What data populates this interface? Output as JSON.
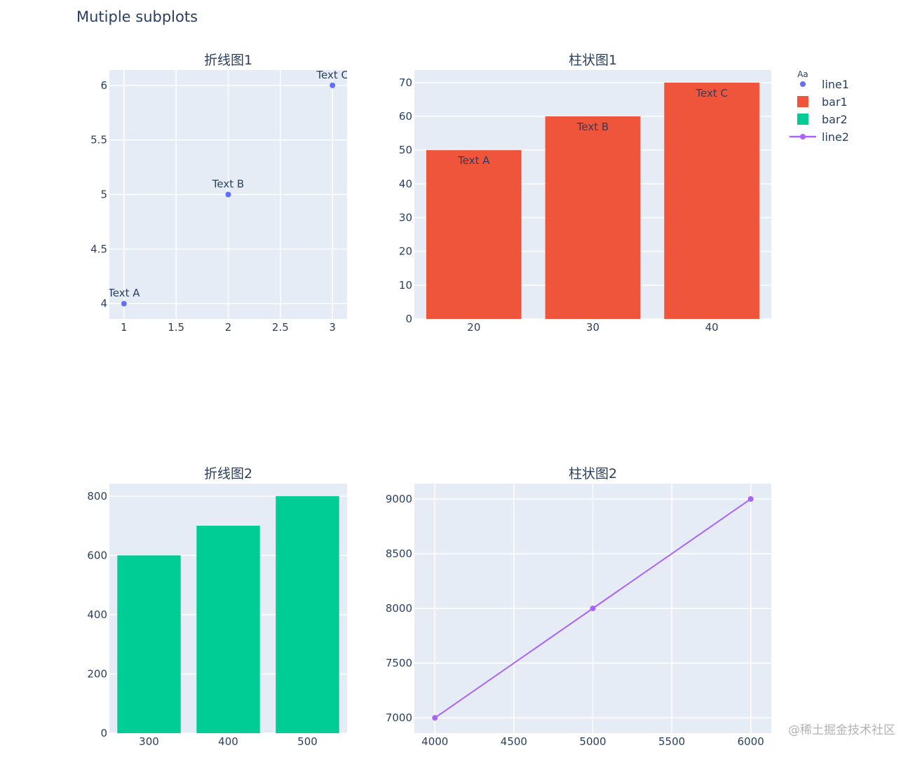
{
  "title": "Mutiple subplots",
  "watermark": "@稀土掘金技术社区",
  "legend": {
    "title": "Aa",
    "placement": "right",
    "items": [
      {
        "name": "line1",
        "symbol": "marker",
        "color": "#636efa"
      },
      {
        "name": "bar1",
        "symbol": "square",
        "color": "#ef553b"
      },
      {
        "name": "bar2",
        "symbol": "square",
        "color": "#00cc96"
      },
      {
        "name": "line2",
        "symbol": "line-marker",
        "color": "#ab63fa"
      }
    ]
  },
  "colors": {
    "plot_bg": "#e5ecf6",
    "grid": "#ffffff",
    "text": "#2a3f5f"
  },
  "chart_data": [
    {
      "type": "scatter",
      "title": "折线图1",
      "series": [
        {
          "name": "line1",
          "color": "#636efa",
          "mode": "markers+text",
          "x": [
            1,
            2,
            3
          ],
          "y": [
            4,
            5,
            6
          ],
          "text": [
            "Text A",
            "Text B",
            "Text C"
          ]
        }
      ],
      "xlim": [
        0.86,
        3.14
      ],
      "ylim": [
        3.86,
        6.14
      ],
      "xticks": [
        1,
        1.5,
        2,
        2.5,
        3
      ],
      "yticks": [
        4,
        4.5,
        5,
        5.5,
        6
      ],
      "grid": true
    },
    {
      "type": "bar",
      "title": "柱状图1",
      "series": [
        {
          "name": "bar1",
          "color": "#ef553b",
          "x": [
            20,
            30,
            40
          ],
          "values": [
            50,
            60,
            70
          ],
          "text": [
            "Text A",
            "Text B",
            "Text C"
          ]
        }
      ],
      "categories": [
        "20",
        "30",
        "40"
      ],
      "ylim": [
        0,
        73.7
      ],
      "yticks": [
        0,
        10,
        20,
        30,
        40,
        50,
        60,
        70
      ],
      "grid": true
    },
    {
      "type": "bar",
      "title": "折线图2",
      "series": [
        {
          "name": "bar2",
          "color": "#00cc96",
          "x": [
            300,
            400,
            500
          ],
          "values": [
            600,
            700,
            800
          ]
        }
      ],
      "categories": [
        "300",
        "400",
        "500"
      ],
      "ylim": [
        0,
        842
      ],
      "yticks": [
        0,
        200,
        400,
        600,
        800
      ],
      "grid": true
    },
    {
      "type": "line",
      "title": "柱状图2",
      "series": [
        {
          "name": "line2",
          "color": "#ab63fa",
          "mode": "lines+markers",
          "x": [
            4000,
            5000,
            6000
          ],
          "y": [
            7000,
            8000,
            9000
          ]
        }
      ],
      "xlim": [
        3870,
        6130
      ],
      "ylim": [
        6860,
        9140
      ],
      "xticks": [
        4000,
        4500,
        5000,
        5500,
        6000
      ],
      "yticks": [
        7000,
        7500,
        8000,
        8500,
        9000
      ],
      "grid": true
    }
  ]
}
